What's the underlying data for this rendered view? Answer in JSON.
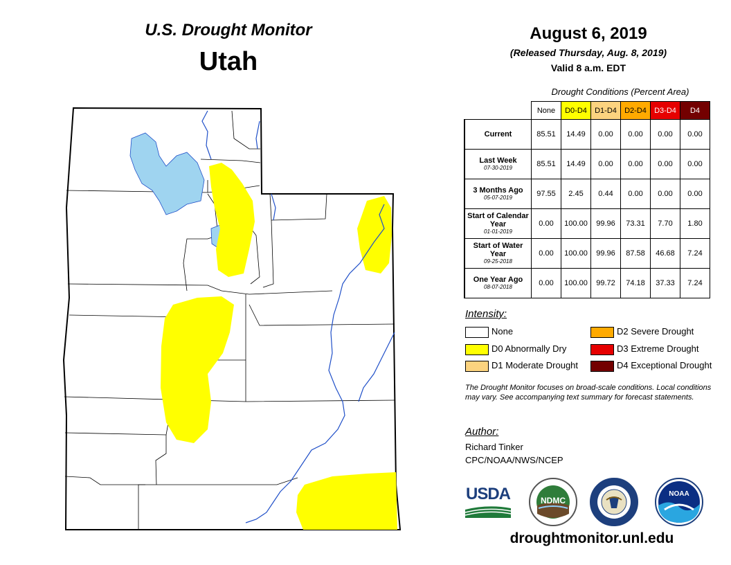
{
  "map": {
    "title": "U.S. Drought Monitor",
    "state": "Utah"
  },
  "date": {
    "title": "August 6, 2019",
    "released": "(Released Thursday, Aug. 8, 2019)",
    "valid": "Valid 8 a.m. EDT"
  },
  "conditions": {
    "caption": "Drought Conditions (Percent Area)",
    "columns": [
      {
        "label": "None",
        "color": "#ffffff",
        "text_color": "#000000"
      },
      {
        "label": "D0-D4",
        "color": "#ffff00",
        "text_color": "#000000"
      },
      {
        "label": "D1-D4",
        "color": "#fcd37f",
        "text_color": "#000000"
      },
      {
        "label": "D2-D4",
        "color": "#ffaa00",
        "text_color": "#000000"
      },
      {
        "label": "D3-D4",
        "color": "#e60000",
        "text_color": "#ffffff"
      },
      {
        "label": "D4",
        "color": "#730000",
        "text_color": "#ffffff"
      }
    ],
    "rows": [
      {
        "label": "Current",
        "date": "",
        "values": [
          "85.51",
          "14.49",
          "0.00",
          "0.00",
          "0.00",
          "0.00"
        ]
      },
      {
        "label": "Last Week",
        "date": "07-30-2019",
        "values": [
          "85.51",
          "14.49",
          "0.00",
          "0.00",
          "0.00",
          "0.00"
        ]
      },
      {
        "label": "3 Months Ago",
        "date": "05-07-2019",
        "values": [
          "97.55",
          "2.45",
          "0.44",
          "0.00",
          "0.00",
          "0.00"
        ]
      },
      {
        "label": "Start of Calendar Year",
        "date": "01-01-2019",
        "values": [
          "0.00",
          "100.00",
          "99.96",
          "73.31",
          "7.70",
          "1.80"
        ]
      },
      {
        "label": "Start of Water Year",
        "date": "09-25-2018",
        "values": [
          "0.00",
          "100.00",
          "99.96",
          "87.58",
          "46.68",
          "7.24"
        ]
      },
      {
        "label": "One Year Ago",
        "date": "08-07-2018",
        "values": [
          "0.00",
          "100.00",
          "99.72",
          "74.18",
          "37.33",
          "7.24"
        ]
      }
    ]
  },
  "intensity": {
    "title": "Intensity:",
    "items": [
      {
        "label": "None",
        "color": "#ffffff"
      },
      {
        "label": "D0 Abnormally Dry",
        "color": "#ffff00"
      },
      {
        "label": "D1 Moderate Drought",
        "color": "#fcd37f"
      },
      {
        "label": "D2 Severe Drought",
        "color": "#ffaa00"
      },
      {
        "label": "D3 Extreme Drought",
        "color": "#e60000"
      },
      {
        "label": "D4 Exceptional Drought",
        "color": "#730000"
      }
    ]
  },
  "note": "The Drought Monitor focuses on broad-scale conditions. Local conditions may vary. See accompanying text summary for forecast statements.",
  "author": {
    "title": "Author:",
    "name": "Richard Tinker",
    "org": "CPC/NOAA/NWS/NCEP"
  },
  "logos": {
    "usda": "USDA",
    "ndmc": "NDMC",
    "noaa": "NOAA"
  },
  "website": "droughtmonitor.unl.edu",
  "colors": {
    "water": "#9fd4f0",
    "river": "#1f4fc8",
    "d0": "#ffff00"
  }
}
